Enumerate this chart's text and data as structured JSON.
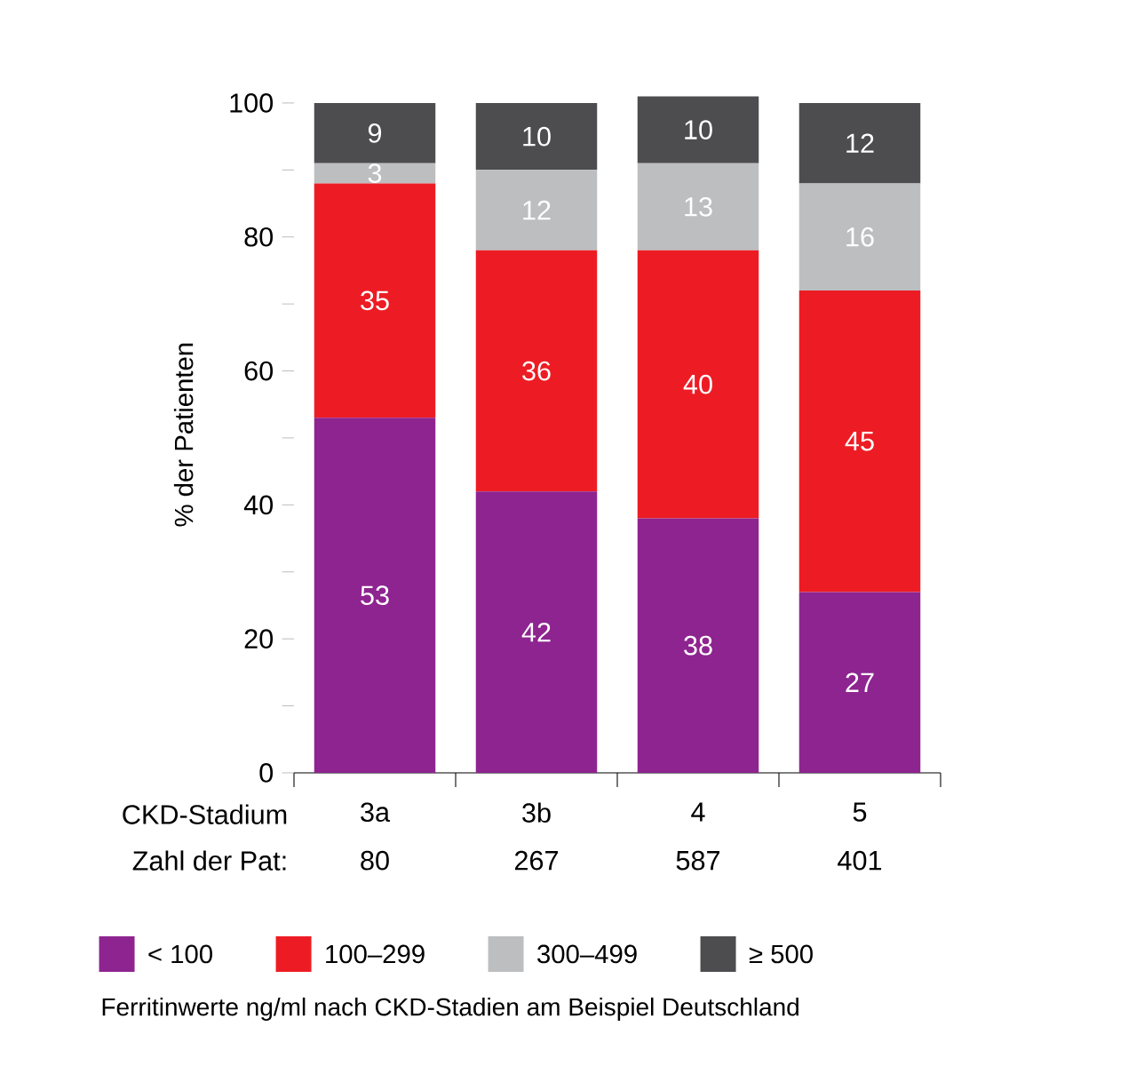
{
  "chart_data": {
    "type": "bar",
    "stacked": true,
    "ylabel": "% der Patienten",
    "categories": [
      "3a",
      "3b",
      "4",
      "5"
    ],
    "series": [
      {
        "name": "< 100",
        "color": "#8e2490",
        "values": [
          53,
          42,
          38,
          27
        ]
      },
      {
        "name": "100–299",
        "color": "#ed1c24",
        "values": [
          35,
          36,
          40,
          45
        ]
      },
      {
        "name": "300–499",
        "color": "#bcbec0",
        "values": [
          3,
          12,
          13,
          16
        ]
      },
      {
        "name": "≥ 500",
        "color": "#4d4d4f",
        "values": [
          9,
          10,
          10,
          12
        ]
      }
    ],
    "ylim": [
      0,
      101
    ],
    "yticks": [
      0,
      {
        "value": 10,
        "label": null
      },
      20,
      {
        "value": 30,
        "label": null
      },
      40,
      {
        "value": 50,
        "label": null
      },
      60,
      {
        "value": 70,
        "label": null
      },
      80,
      {
        "value": 90,
        "label": null
      },
      100
    ],
    "data_labels": true,
    "legend": "bottom",
    "annotations": [
      "CKD-Stadium",
      "Zahl der Pat:",
      "80",
      "267",
      "587",
      "401",
      "Ferritinwerte ng/ml nach CKD-Stadien am Beispiel Deutschland"
    ]
  }
}
